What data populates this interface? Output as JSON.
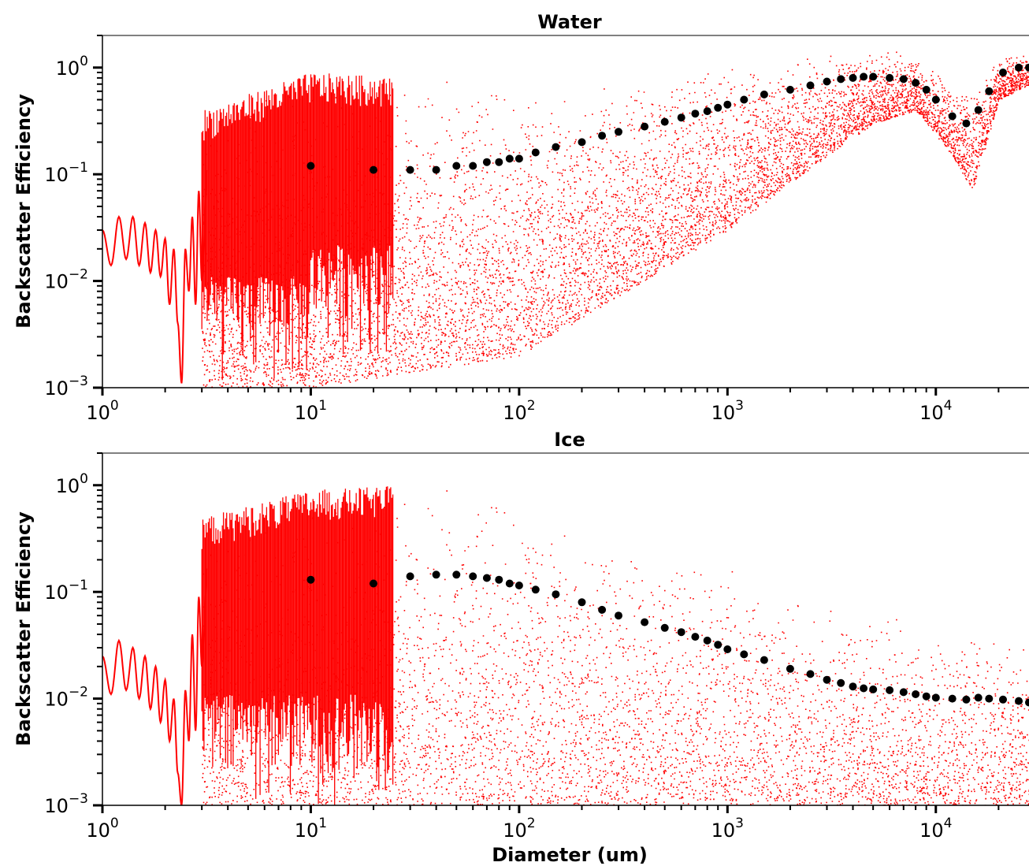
{
  "chart_data": [
    {
      "type": "scatter",
      "title": "Water",
      "xlabel": "",
      "ylabel": "Backscatter Efficiency",
      "x_scale": "log",
      "y_scale": "log",
      "xlim": [
        1,
        28000
      ],
      "ylim": [
        0.001,
        2
      ],
      "x_ticks": [
        {
          "value": 1,
          "base": "10",
          "exp": "0"
        },
        {
          "value": 10,
          "base": "10",
          "exp": "1"
        },
        {
          "value": 100,
          "base": "10",
          "exp": "2"
        },
        {
          "value": 1000,
          "base": "10",
          "exp": "3"
        },
        {
          "value": 10000,
          "base": "10",
          "exp": "4"
        }
      ],
      "y_ticks": [
        {
          "value": 1,
          "base": "10",
          "exp": "0"
        },
        {
          "value": 0.1,
          "base": "10",
          "exp": "−1"
        },
        {
          "value": 0.01,
          "base": "10",
          "exp": "−2"
        },
        {
          "value": 0.001,
          "base": "10",
          "exp": "−3"
        }
      ],
      "colors": {
        "line": "#ff0000",
        "markers": "#000000"
      },
      "series": [
        {
          "style": "red continuous line (small diameters)",
          "x": [
            1.0,
            1.1,
            1.2,
            1.3,
            1.4,
            1.5,
            1.6,
            1.7,
            1.8,
            1.9,
            2.0,
            2.1,
            2.2,
            2.3,
            2.4,
            2.5,
            2.6,
            2.7,
            2.8,
            2.9,
            3.0,
            3.2
          ],
          "y": [
            0.03,
            0.014,
            0.04,
            0.016,
            0.04,
            0.014,
            0.035,
            0.012,
            0.03,
            0.011,
            0.025,
            0.006,
            0.02,
            0.004,
            0.0011,
            0.02,
            0.008,
            0.04,
            0.006,
            0.07,
            0.01,
            0.12
          ]
        },
        {
          "style": "red scattered dots (oscillating envelope)",
          "envelope": {
            "x": [
              3,
              10,
              100,
              1000,
              3000,
              5000,
              8000,
              12000,
              15000,
              20000,
              28000
            ],
            "upper": [
              0.4,
              0.9,
              0.7,
              1.1,
              1.4,
              1.5,
              1.4,
              0.8,
              0.6,
              1.3,
              1.4
            ],
            "lower": [
              0.001,
              0.001,
              0.002,
              0.03,
              0.15,
              0.3,
              0.4,
              0.15,
              0.07,
              0.5,
              0.7
            ]
          }
        },
        {
          "style": "black circle markers (averaged)",
          "x": [
            10,
            20,
            30,
            40,
            50,
            60,
            70,
            80,
            90,
            100,
            120,
            150,
            200,
            250,
            300,
            400,
            500,
            600,
            700,
            800,
            900,
            1000,
            1200,
            1500,
            2000,
            2500,
            3000,
            3500,
            4000,
            4500,
            5000,
            6000,
            7000,
            8000,
            9000,
            10000,
            12000,
            14000,
            16000,
            18000,
            21000,
            25000,
            28000
          ],
          "y": [
            0.12,
            0.11,
            0.11,
            0.11,
            0.12,
            0.12,
            0.13,
            0.13,
            0.14,
            0.14,
            0.16,
            0.18,
            0.2,
            0.23,
            0.25,
            0.28,
            0.31,
            0.34,
            0.37,
            0.39,
            0.42,
            0.45,
            0.5,
            0.56,
            0.62,
            0.68,
            0.74,
            0.78,
            0.8,
            0.82,
            0.82,
            0.8,
            0.78,
            0.72,
            0.62,
            0.5,
            0.35,
            0.3,
            0.4,
            0.6,
            0.9,
            1.0,
            1.0
          ]
        }
      ]
    },
    {
      "type": "scatter",
      "title": "Ice",
      "xlabel": "Diameter (um)",
      "ylabel": "Backscatter Efficiency",
      "x_scale": "log",
      "y_scale": "log",
      "xlim": [
        1,
        28000
      ],
      "ylim": [
        0.001,
        2
      ],
      "x_ticks": [
        {
          "value": 1,
          "base": "10",
          "exp": "0"
        },
        {
          "value": 10,
          "base": "10",
          "exp": "1"
        },
        {
          "value": 100,
          "base": "10",
          "exp": "2"
        },
        {
          "value": 1000,
          "base": "10",
          "exp": "3"
        },
        {
          "value": 10000,
          "base": "10",
          "exp": "4"
        }
      ],
      "y_ticks": [
        {
          "value": 1,
          "base": "10",
          "exp": "0"
        },
        {
          "value": 0.1,
          "base": "10",
          "exp": "−1"
        },
        {
          "value": 0.01,
          "base": "10",
          "exp": "−2"
        },
        {
          "value": 0.001,
          "base": "10",
          "exp": "−3"
        }
      ],
      "colors": {
        "line": "#ff0000",
        "markers": "#000000"
      },
      "series": [
        {
          "style": "red continuous line (small diameters)",
          "x": [
            1.0,
            1.1,
            1.2,
            1.3,
            1.4,
            1.5,
            1.6,
            1.7,
            1.8,
            1.9,
            2.0,
            2.1,
            2.2,
            2.3,
            2.4,
            2.5,
            2.6,
            2.7,
            2.8,
            2.9,
            3.0,
            3.2
          ],
          "y": [
            0.025,
            0.011,
            0.035,
            0.012,
            0.03,
            0.01,
            0.025,
            0.008,
            0.02,
            0.006,
            0.015,
            0.004,
            0.01,
            0.002,
            0.001,
            0.012,
            0.004,
            0.04,
            0.005,
            0.09,
            0.02,
            0.18
          ]
        },
        {
          "style": "red scattered dots (oscillating envelope)",
          "envelope": {
            "x": [
              3,
              10,
              30,
              100,
              300,
              1000,
              3000,
              10000,
              28000
            ],
            "upper": [
              0.5,
              0.9,
              1.0,
              0.8,
              0.4,
              0.2,
              0.08,
              0.05,
              0.04
            ],
            "lower": [
              0.001,
              0.001,
              0.001,
              0.001,
              0.001,
              0.001,
              0.001,
              0.001,
              0.001
            ]
          }
        },
        {
          "style": "black circle markers (averaged)",
          "x": [
            10,
            20,
            30,
            40,
            50,
            60,
            70,
            80,
            90,
            100,
            120,
            150,
            200,
            250,
            300,
            400,
            500,
            600,
            700,
            800,
            900,
            1000,
            1200,
            1500,
            2000,
            2500,
            3000,
            3500,
            4000,
            4500,
            5000,
            6000,
            7000,
            8000,
            9000,
            10000,
            12000,
            14000,
            16000,
            18000,
            21000,
            25000,
            28000
          ],
          "y": [
            0.13,
            0.12,
            0.14,
            0.145,
            0.145,
            0.14,
            0.135,
            0.13,
            0.12,
            0.115,
            0.105,
            0.095,
            0.08,
            0.068,
            0.06,
            0.052,
            0.046,
            0.042,
            0.038,
            0.035,
            0.032,
            0.029,
            0.026,
            0.023,
            0.019,
            0.017,
            0.015,
            0.014,
            0.013,
            0.0125,
            0.0122,
            0.012,
            0.0115,
            0.011,
            0.0105,
            0.0102,
            0.01,
            0.0098,
            0.0102,
            0.01,
            0.0098,
            0.0095,
            0.0092
          ]
        }
      ]
    }
  ]
}
